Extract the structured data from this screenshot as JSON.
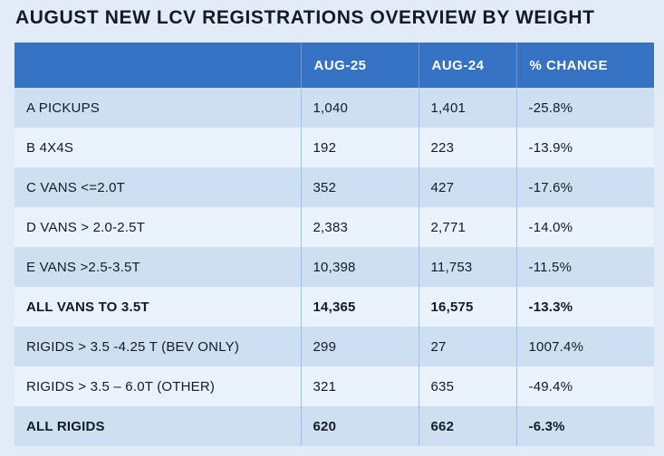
{
  "title": "AUGUST NEW LCV REGISTRATIONS OVERVIEW BY WEIGHT",
  "chart_data": {
    "type": "table",
    "title": "AUGUST NEW LCV REGISTRATIONS OVERVIEW BY WEIGHT",
    "columns": [
      "",
      "AUG-25",
      "AUG-24",
      "% CHANGE"
    ],
    "rows": [
      {
        "cells": [
          "A PICKUPS",
          "1,040",
          "1,401",
          "-25.8%"
        ],
        "bold": false
      },
      {
        "cells": [
          "B 4X4S",
          "192",
          "223",
          "-13.9%"
        ],
        "bold": false
      },
      {
        "cells": [
          "C VANS <=2.0T",
          "352",
          "427",
          "-17.6%"
        ],
        "bold": false
      },
      {
        "cells": [
          "D VANS > 2.0-2.5T",
          "2,383",
          "2,771",
          "-14.0%"
        ],
        "bold": false
      },
      {
        "cells": [
          "E VANS >2.5-3.5T",
          "10,398",
          "11,753",
          "-11.5%"
        ],
        "bold": false
      },
      {
        "cells": [
          "ALL VANS TO 3.5T",
          "14,365",
          "16,575",
          "-13.3%"
        ],
        "bold": true
      },
      {
        "cells": [
          "RIGIDS > 3.5 -4.25 T (BEV ONLY)",
          "299",
          "27",
          "1007.4%"
        ],
        "bold": false
      },
      {
        "cells": [
          "RIGIDS > 3.5 – 6.0T (OTHER)",
          "321",
          "635",
          "-49.4%"
        ],
        "bold": false
      },
      {
        "cells": [
          "ALL RIGIDS",
          "620",
          "662",
          "-6.3%"
        ],
        "bold": true
      }
    ]
  },
  "colors": {
    "page_bg": "#e2ebf6",
    "header_bg": "#3572c4",
    "header_text": "#ffffff",
    "row_dark": "#cfdff2",
    "row_light": "#e9f1fb",
    "body_sep": "#a3c2e4",
    "header_sep": "#6f98d6",
    "text": "#131c26"
  }
}
